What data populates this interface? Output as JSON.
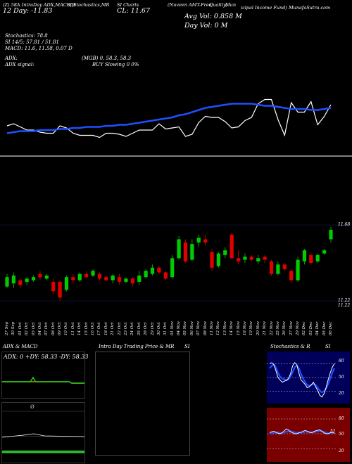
{
  "header": {
    "row1": {
      "a": "(Z) 58A IntraDay ADX,MACD,B",
      "b": "SI,Stochastics,MR",
      "c": "SI Charts",
      "d": "(Nuveen AMT-Free",
      "e": "Quality)",
      "f": "Mun",
      "g": "icipal Income Fund) MunafaSutra.com"
    },
    "row2": {
      "price": "12   Day: -11.83",
      "close": "CL: 11.67",
      "avgvol": "Avg Vol: 0.858  M"
    },
    "row3": {
      "dayvol": "Day Vol: 0   M"
    },
    "stoch": "Stochastics: 78.8",
    "si": "SI 14/5: 57.81 / 51.81",
    "macd": "MACD: 11.6, 11.58, 0.07 D",
    "adx": "ADX:",
    "adx_mid": "(MGB) 0, 58.3, 58.3",
    "adx_signal": "ADX  signal:",
    "buy": "BUY Slowing 0 0%"
  },
  "candle_axis": {
    "top": "11.68",
    "bottom1": "11.22",
    "bottom2": "11.22"
  },
  "dates": [
    "27 Sep",
    "30 Sep",
    "01 Oct",
    "02 Oct",
    "03 Oct",
    "04 Oct",
    "07 Oct",
    "08 Oct",
    "09 Oct",
    "10 Oct",
    "11 Oct",
    "14 Oct",
    "15 Oct",
    "16 Oct",
    "17 Oct",
    "18 Oct",
    "21 Oct",
    "22 Oct",
    "23 Oct",
    "24 Oct",
    "25 Oct",
    "28 Oct",
    "29 Oct",
    "30 Oct",
    "31 Oct",
    "01 Nov",
    "04 Nov",
    "05 Nov",
    "06 Nov",
    "07 Nov",
    "08 Nov",
    "11 Nov",
    "12 Nov",
    "13 Nov",
    "14 Nov",
    "15 Nov",
    "18 Nov",
    "19 Nov",
    "20 Nov",
    "21 Nov",
    "22 Nov",
    "25 Nov",
    "26 Nov",
    "27 Nov",
    "29 Nov",
    "02 Dec",
    "03 Dec",
    "04 Dec",
    "05 Dec",
    "06 Dec"
  ],
  "panels": {
    "adx_title": "ADX  & MACD",
    "adx_readout": "ADX: 0   +DY: 58.33  -DY: 58.33",
    "macd_label": "Ø",
    "intra_title": "Intra Day Trading Price  & MR",
    "intra_si": "SI",
    "stoch_title": "Stochastics & R",
    "stoch_si": "SI",
    "stoch_ticks": [
      "80",
      "50",
      "20"
    ],
    "rsi_ticks": [
      "80",
      "50",
      "20"
    ],
    "rsi_mid": "51"
  },
  "colors": {
    "up": "#00cc00",
    "down": "#e00000",
    "ma": "#1e50ff",
    "gold": "#b8860b",
    "green": "#22cc22",
    "navy": "#00005a",
    "maroon": "#7a0000"
  },
  "chart_data": {
    "type": "line",
    "series": [
      {
        "values": [
          34,
          36,
          33,
          30,
          30,
          28,
          27,
          27,
          34,
          32,
          27,
          25,
          25,
          25,
          23,
          27,
          27,
          26,
          24,
          27,
          30,
          30,
          30,
          36,
          31,
          32,
          33,
          24,
          26,
          37,
          43,
          42,
          42,
          38,
          32,
          33,
          39,
          42,
          55,
          59,
          59,
          40,
          25,
          56,
          47,
          47,
          57,
          35,
          43,
          54
        ]
      },
      {
        "values": [
          27,
          28,
          29,
          29,
          29,
          30,
          30,
          30,
          31,
          31,
          32,
          32,
          33,
          33,
          33,
          34,
          34,
          35,
          35,
          36,
          37,
          38,
          39,
          40,
          41,
          42,
          44,
          45,
          47,
          49,
          51,
          52,
          53,
          54,
          55,
          55,
          55,
          55,
          54,
          53,
          53,
          52,
          51,
          50,
          50,
          50,
          49,
          49,
          50,
          51
        ]
      }
    ],
    "candles": [
      {
        "o": 11.3,
        "c": 11.36,
        "h": 11.38,
        "l": 11.29
      },
      {
        "o": 11.32,
        "c": 11.37,
        "h": 11.39,
        "l": 11.29
      },
      {
        "o": 11.34,
        "c": 11.31,
        "h": 11.35,
        "l": 11.29
      },
      {
        "o": 11.33,
        "c": 11.35,
        "h": 11.36,
        "l": 11.31
      },
      {
        "o": 11.34,
        "c": 11.36,
        "h": 11.37,
        "l": 11.33
      },
      {
        "o": 11.38,
        "c": 11.36,
        "h": 11.4,
        "l": 11.34
      },
      {
        "o": 11.35,
        "c": 11.37,
        "h": 11.38,
        "l": 11.34
      },
      {
        "o": 11.33,
        "c": 11.27,
        "h": 11.35,
        "l": 11.25
      },
      {
        "o": 11.33,
        "c": 11.23,
        "h": 11.34,
        "l": 11.21
      },
      {
        "o": 11.28,
        "c": 11.36,
        "h": 11.37,
        "l": 11.27
      },
      {
        "o": 11.36,
        "c": 11.34,
        "h": 11.38,
        "l": 11.32
      },
      {
        "o": 11.34,
        "c": 11.38,
        "h": 11.39,
        "l": 11.33
      },
      {
        "o": 11.38,
        "c": 11.36,
        "h": 11.4,
        "l": 11.35
      },
      {
        "o": 11.37,
        "c": 11.4,
        "h": 11.41,
        "l": 11.36
      },
      {
        "o": 11.38,
        "c": 11.35,
        "h": 11.39,
        "l": 11.34
      },
      {
        "o": 11.36,
        "c": 11.34,
        "h": 11.37,
        "l": 11.33
      },
      {
        "o": 11.34,
        "c": 11.37,
        "h": 11.38,
        "l": 11.32
      },
      {
        "o": 11.36,
        "c": 11.33,
        "h": 11.38,
        "l": 11.31
      },
      {
        "o": 11.33,
        "c": 11.35,
        "h": 11.36,
        "l": 11.32
      },
      {
        "o": 11.35,
        "c": 11.32,
        "h": 11.36,
        "l": 11.3
      },
      {
        "o": 11.33,
        "c": 11.37,
        "h": 11.4,
        "l": 11.31
      },
      {
        "o": 11.36,
        "c": 11.4,
        "h": 11.41,
        "l": 11.35
      },
      {
        "o": 11.38,
        "c": 11.42,
        "h": 11.44,
        "l": 11.37
      },
      {
        "o": 11.42,
        "c": 11.39,
        "h": 11.43,
        "l": 11.38
      },
      {
        "o": 11.39,
        "c": 11.35,
        "h": 11.4,
        "l": 11.34
      },
      {
        "o": 11.36,
        "c": 11.48,
        "h": 11.5,
        "l": 11.35
      },
      {
        "o": 11.48,
        "c": 11.6,
        "h": 11.62,
        "l": 11.47
      },
      {
        "o": 11.58,
        "c": 11.46,
        "h": 11.6,
        "l": 11.45
      },
      {
        "o": 11.47,
        "c": 11.57,
        "h": 11.6,
        "l": 11.46
      },
      {
        "o": 11.58,
        "c": 11.61,
        "h": 11.63,
        "l": 11.55
      },
      {
        "o": 11.6,
        "c": 11.58,
        "h": 11.63,
        "l": 11.56
      },
      {
        "o": 11.52,
        "c": 11.42,
        "h": 11.54,
        "l": 11.4
      },
      {
        "o": 11.43,
        "c": 11.51,
        "h": 11.52,
        "l": 11.42
      },
      {
        "o": 11.5,
        "c": 11.53,
        "h": 11.55,
        "l": 11.48
      },
      {
        "o": 11.63,
        "c": 11.48,
        "h": 11.64,
        "l": 11.47
      },
      {
        "o": 11.48,
        "c": 11.46,
        "h": 11.53,
        "l": 11.44
      },
      {
        "o": 11.47,
        "c": 11.49,
        "h": 11.51,
        "l": 11.45
      },
      {
        "o": 11.49,
        "c": 11.47,
        "h": 11.5,
        "l": 11.46
      },
      {
        "o": 11.46,
        "c": 11.48,
        "h": 11.5,
        "l": 11.44
      },
      {
        "o": 11.49,
        "c": 11.47,
        "h": 11.5,
        "l": 11.45
      },
      {
        "o": 11.46,
        "c": 11.38,
        "h": 11.47,
        "l": 11.37
      },
      {
        "o": 11.38,
        "c": 11.44,
        "h": 11.46,
        "l": 11.37
      },
      {
        "o": 11.44,
        "c": 11.41,
        "h": 11.45,
        "l": 11.4
      },
      {
        "o": 11.4,
        "c": 11.34,
        "h": 11.41,
        "l": 11.32
      },
      {
        "o": 11.34,
        "c": 11.47,
        "h": 11.49,
        "l": 11.33
      },
      {
        "o": 11.46,
        "c": 11.53,
        "h": 11.54,
        "l": 11.44
      },
      {
        "o": 11.5,
        "c": 11.45,
        "h": 11.51,
        "l": 11.44
      },
      {
        "o": 11.46,
        "c": 11.5,
        "h": 11.51,
        "l": 11.45
      },
      {
        "o": 11.51,
        "c": 11.53,
        "h": 11.54,
        "l": 11.5
      },
      {
        "o": 11.6,
        "c": 11.66,
        "h": 11.68,
        "l": 11.58
      }
    ],
    "candle_ylim": [
      11.2,
      11.7
    ],
    "adx": {
      "plus_di": [
        58,
        58,
        58,
        58,
        58,
        58,
        58,
        58,
        58,
        58,
        58,
        58,
        64,
        58,
        58,
        58,
        58,
        58,
        58,
        58,
        58,
        58,
        58,
        58,
        58,
        58,
        58,
        56,
        56,
        56,
        56,
        56,
        56
      ],
      "minus_di": [
        58,
        58,
        58,
        58,
        58,
        58,
        58,
        58,
        58,
        58,
        58,
        58,
        58,
        58,
        58,
        58,
        58,
        58,
        58,
        58,
        58,
        58,
        58,
        58,
        58,
        58,
        58,
        56,
        56,
        56,
        56,
        56,
        56
      ]
    },
    "stoch_k": [
      80,
      82,
      78,
      65,
      50,
      45,
      40,
      42,
      44,
      48,
      58,
      75,
      82,
      78,
      60,
      45,
      40,
      35,
      28,
      30,
      35,
      40,
      30,
      22,
      12,
      8,
      15,
      28,
      45,
      60,
      72,
      80
    ],
    "stoch_d": [
      70,
      75,
      78,
      72,
      60,
      52,
      48,
      46,
      44,
      46,
      52,
      62,
      72,
      76,
      70,
      58,
      48,
      40,
      34,
      32,
      34,
      36,
      34,
      28,
      22,
      18,
      20,
      26,
      36,
      48,
      60,
      70
    ],
    "rsi": [
      52,
      54,
      55,
      53,
      51,
      50,
      52,
      56,
      60,
      58,
      54,
      52,
      50,
      50,
      52,
      53,
      55,
      57,
      55,
      53,
      52,
      54,
      56,
      57,
      58,
      55,
      52,
      50,
      50,
      52,
      53,
      51
    ],
    "rsi_signal": [
      50,
      51,
      52,
      53,
      53,
      52,
      52,
      53,
      54,
      55,
      55,
      54,
      53,
      52,
      52,
      52,
      53,
      54,
      54,
      54,
      53,
      53,
      54,
      55,
      56,
      55,
      54,
      52,
      51,
      51,
      52,
      52
    ]
  }
}
